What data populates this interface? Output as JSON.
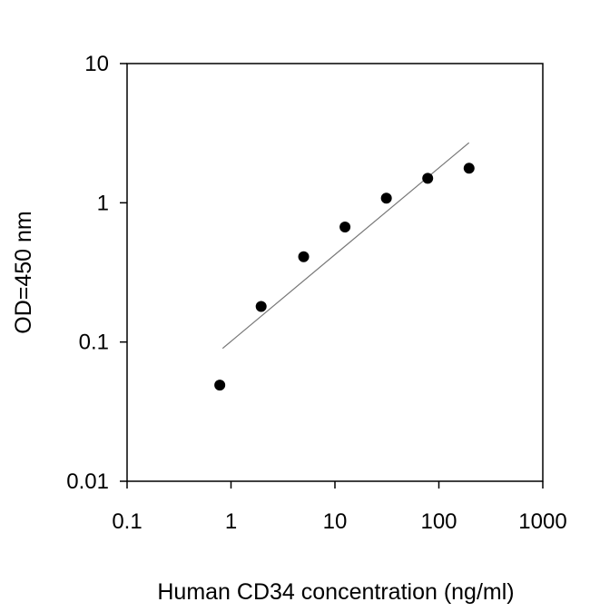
{
  "chart_data": {
    "type": "scatter",
    "title": "",
    "xlabel": "Human CD34 concentration (ng/ml)",
    "ylabel": "OD=450 nm",
    "x_scale": "log",
    "y_scale": "log",
    "xlim": [
      0.1,
      1000
    ],
    "ylim": [
      0.01,
      10
    ],
    "x_ticks": [
      "0.1",
      "1",
      "10",
      "100",
      "1000"
    ],
    "y_ticks": [
      "0.01",
      "0.1",
      "1",
      "10"
    ],
    "grid": false,
    "series": [
      {
        "x": [
          0.78,
          1.95,
          5.0,
          12.5,
          31.25,
          78.1,
          195.3
        ],
        "y": [
          0.049,
          0.18,
          0.41,
          0.67,
          1.08,
          1.5,
          1.77
        ],
        "marker": "circle",
        "color": "#000000"
      }
    ],
    "fit_line": {
      "x": [
        0.83,
        195
      ],
      "y": [
        0.09,
        2.7
      ],
      "color": "#777777"
    }
  }
}
